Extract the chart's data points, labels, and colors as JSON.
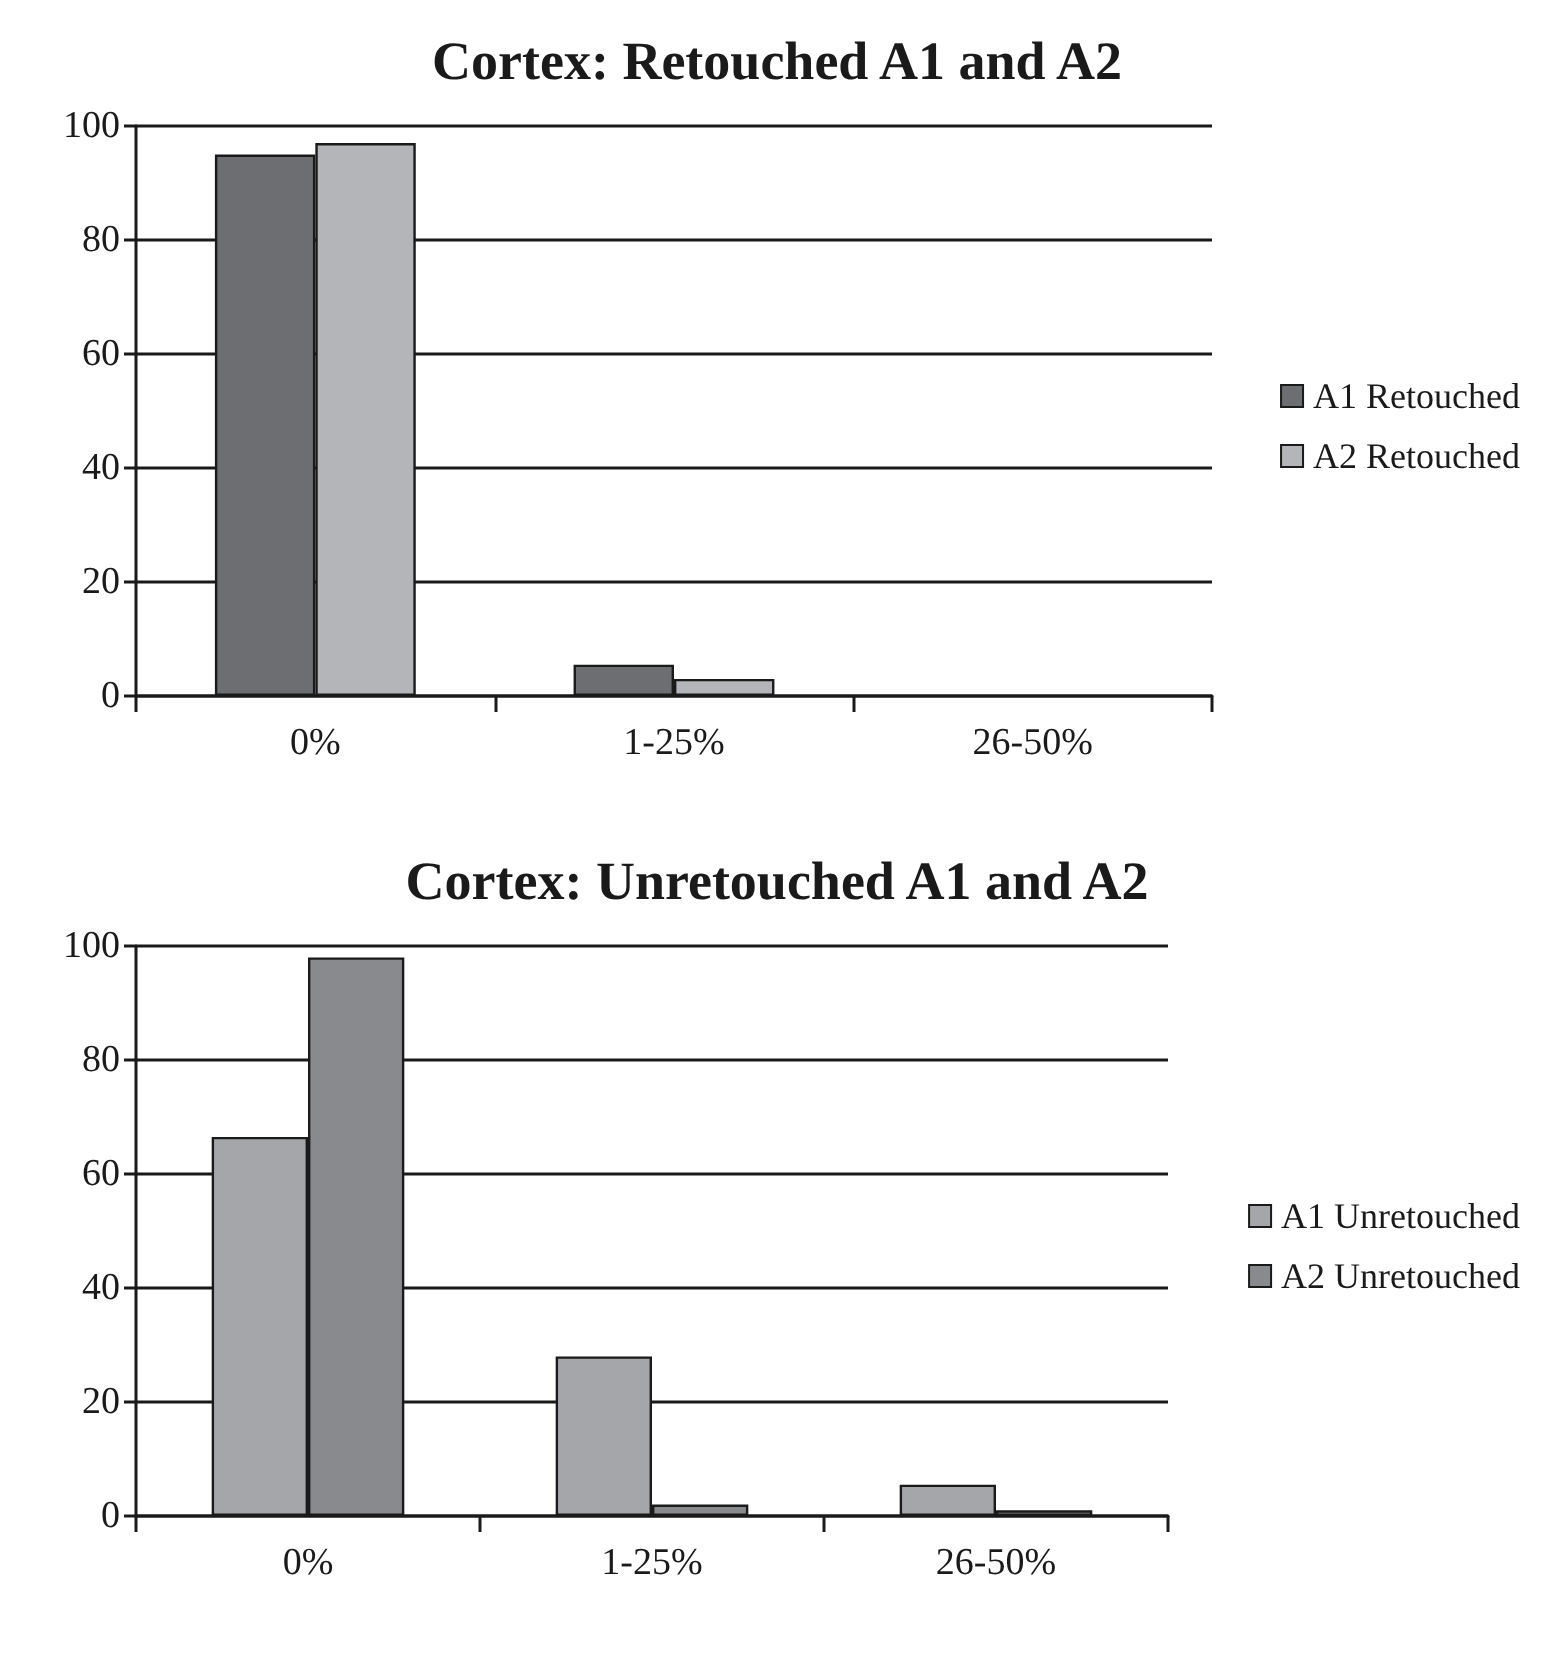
{
  "chart_data": [
    {
      "type": "bar",
      "title": "Cortex: Retouched A1 and A2",
      "categories": [
        "0%",
        "1-25%",
        "26-50%"
      ],
      "series": [
        {
          "name": "A1 Retouched",
          "color": "#6d6e72",
          "values": [
            95,
            5.5,
            0
          ]
        },
        {
          "name": "A2 Retouched",
          "color": "#b4b5b9",
          "values": [
            97,
            3,
            0
          ]
        }
      ],
      "ylim": [
        0,
        100
      ],
      "yticks": [
        0,
        20,
        40,
        60,
        80,
        100
      ],
      "grid": "y",
      "legend": "right"
    },
    {
      "type": "bar",
      "title": "Cortex: Unretouched A1 and A2",
      "categories": [
        "0%",
        "1-25%",
        "26-50%"
      ],
      "series": [
        {
          "name": "A1 Unretouched",
          "color": "#a5a6aa",
          "values": [
            66.5,
            28,
            5.5
          ]
        },
        {
          "name": "A2 Unretouched",
          "color": "#898a8e",
          "values": [
            98,
            2,
            1
          ]
        }
      ],
      "ylim": [
        0,
        100
      ],
      "yticks": [
        0,
        20,
        40,
        60,
        80,
        100
      ],
      "grid": "y",
      "legend": "right"
    }
  ]
}
